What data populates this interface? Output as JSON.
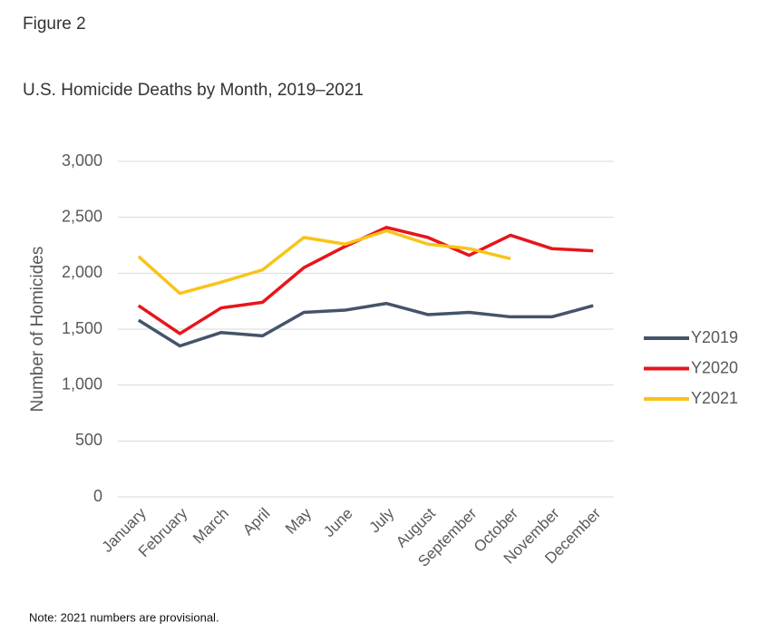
{
  "chart_data": {
    "type": "line",
    "figure_label": "Figure 2",
    "title": "U.S. Homicide Deaths by Month, 2019–2021",
    "y_label": "Number of Homicides",
    "note": "Note: 2021 numbers are provisional.",
    "categories": [
      "January",
      "February",
      "March",
      "April",
      "May",
      "June",
      "July",
      "August",
      "September",
      "October",
      "November",
      "December"
    ],
    "series": [
      {
        "name": "Y2019",
        "color": "#44546a",
        "values": [
          1580,
          1350,
          1470,
          1440,
          1650,
          1670,
          1730,
          1630,
          1650,
          1610,
          1610,
          1710
        ]
      },
      {
        "name": "Y2020",
        "color": "#e8141b",
        "values": [
          1710,
          1460,
          1690,
          1740,
          2050,
          2240,
          2410,
          2320,
          2160,
          2340,
          2220,
          2200
        ]
      },
      {
        "name": "Y2021",
        "color": "#f9c31a",
        "values": [
          2150,
          1820,
          1920,
          2030,
          2320,
          2260,
          2380,
          2260,
          2220,
          2130,
          null,
          null
        ]
      }
    ],
    "ylim": [
      0,
      3000
    ],
    "yticks": [
      0,
      500,
      {
        "value": 1000,
        "label": "1,000"
      },
      {
        "value": 1500,
        "label": "1,500"
      },
      {
        "value": 2000,
        "label": "2,000"
      },
      {
        "value": 2500,
        "label": "2,500"
      },
      {
        "value": 3000,
        "label": "3,000"
      }
    ],
    "grid": true,
    "legend": "right"
  }
}
